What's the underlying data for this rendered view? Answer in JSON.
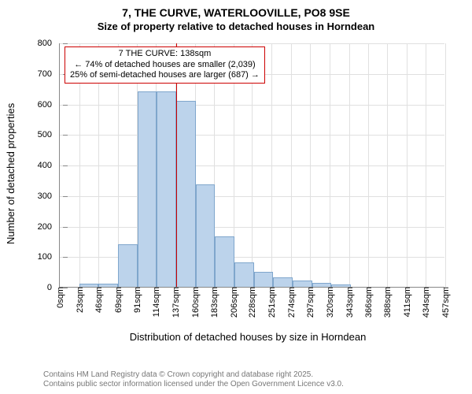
{
  "title": {
    "main": "7, THE CURVE, WATERLOOVILLE, PO8 9SE",
    "subtitle": "Size of property relative to detached houses in Horndean"
  },
  "ylabel": "Number of detached properties",
  "xlabel": "Distribution of detached houses by size in Horndean",
  "chart": {
    "type": "histogram",
    "bar_color": "#bcd3eb",
    "bar_border_color": "#7fa6cc",
    "grid_color": "#e0e0e0",
    "axis_color": "#888888",
    "background_color": "#ffffff",
    "marker_line_color": "#cc0000",
    "ylim": [
      0,
      800
    ],
    "ytick_step": 100,
    "bin_width_sqm": 23,
    "x_start_sqm": 0,
    "xticks_sqm": [
      0,
      23,
      46,
      69,
      91,
      114,
      137,
      160,
      183,
      206,
      228,
      251,
      274,
      297,
      320,
      343,
      366,
      388,
      411,
      434,
      457
    ],
    "xtick_labels": [
      "0sqm",
      "23sqm",
      "46sqm",
      "69sqm",
      "91sqm",
      "114sqm",
      "137sqm",
      "160sqm",
      "183sqm",
      "206sqm",
      "228sqm",
      "251sqm",
      "274sqm",
      "297sqm",
      "320sqm",
      "343sqm",
      "366sqm",
      "388sqm",
      "411sqm",
      "434sqm",
      "457sqm"
    ],
    "values": [
      0,
      10,
      10,
      140,
      640,
      640,
      610,
      335,
      165,
      80,
      50,
      30,
      20,
      12,
      8,
      0,
      0,
      0,
      0,
      0,
      0
    ],
    "marker_at_sqm": 138
  },
  "infobox": {
    "line1": "7 THE CURVE: 138sqm",
    "line2": "← 74% of detached houses are smaller (2,039)",
    "line3": "25% of semi-detached houses are larger (687) →"
  },
  "attribution": {
    "line1": "Contains HM Land Registry data © Crown copyright and database right 2025.",
    "line2": "Contains public sector information licensed under the Open Government Licence v3.0."
  }
}
